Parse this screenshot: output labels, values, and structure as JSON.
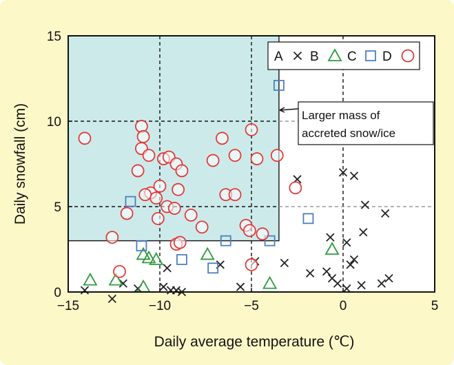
{
  "chart_data": {
    "type": "scatter",
    "xlabel": "Daily average temperature (℃)",
    "ylabel": "Daily snowfall (cm)",
    "xlim": [
      -15,
      5
    ],
    "ylim": [
      0,
      15
    ],
    "xticks": [
      "−15",
      "−10",
      "−5",
      "0",
      "5"
    ],
    "yticks": [
      "0",
      "5",
      "10",
      "15"
    ],
    "x_gridlines": [
      -10,
      -5,
      0
    ],
    "y_gridlines": [
      5,
      10
    ],
    "legend_position": "top-right",
    "highlight_region": {
      "x": [
        -15,
        -3.5
      ],
      "y": [
        3,
        15
      ],
      "color": "#cdeaea",
      "annotation": [
        "Larger mass of",
        "accreted snow/ice"
      ]
    },
    "series": [
      {
        "name": "A",
        "marker": "x",
        "color": "#222222",
        "points": [
          [
            -14.1,
            0.1
          ],
          [
            -12.6,
            -0.4
          ],
          [
            -12.0,
            0.5
          ],
          [
            -11.2,
            0.2
          ],
          [
            -9.6,
            1.4
          ],
          [
            -9.8,
            0.3
          ],
          [
            -9.4,
            0.1
          ],
          [
            -9.1,
            0.1
          ],
          [
            -8.8,
            0.0
          ],
          [
            -6.7,
            1.6
          ],
          [
            -5.6,
            0.3
          ],
          [
            -4.8,
            1.8
          ],
          [
            -3.2,
            1.7
          ],
          [
            -2.5,
            6.6
          ],
          [
            -1.8,
            1.1
          ],
          [
            -0.9,
            1.2
          ],
          [
            -0.6,
            0.8
          ],
          [
            -0.7,
            3.2
          ],
          [
            -0.3,
            0.5
          ],
          [
            0.0,
            7.0
          ],
          [
            0.2,
            2.9
          ],
          [
            0.2,
            0.2
          ],
          [
            0.4,
            1.6
          ],
          [
            0.6,
            6.8
          ],
          [
            0.6,
            1.9
          ],
          [
            1.2,
            5.1
          ],
          [
            1.1,
            3.5
          ],
          [
            1.0,
            0.4
          ],
          [
            2.3,
            4.6
          ],
          [
            2.1,
            0.5
          ],
          [
            2.5,
            0.8
          ]
        ]
      },
      {
        "name": "B",
        "marker": "triangle",
        "color": "#2e9a3c",
        "points": [
          [
            -13.8,
            0.7
          ],
          [
            -12.4,
            0.7
          ],
          [
            -10.9,
            2.2
          ],
          [
            -10.6,
            2.0
          ],
          [
            -10.2,
            1.9
          ],
          [
            -10.9,
            0.3
          ],
          [
            -7.4,
            2.2
          ],
          [
            -4.0,
            0.5
          ],
          [
            -0.6,
            2.5
          ]
        ]
      },
      {
        "name": "C",
        "marker": "square",
        "color": "#4a7fc0",
        "points": [
          [
            -11.6,
            5.3
          ],
          [
            -11.0,
            2.7
          ],
          [
            -8.8,
            1.9
          ],
          [
            -7.1,
            1.4
          ],
          [
            -6.4,
            3.0
          ],
          [
            -4.0,
            3.0
          ],
          [
            -3.5,
            12.1
          ],
          [
            -1.9,
            4.3
          ]
        ]
      },
      {
        "name": "D",
        "marker": "circle",
        "color": "#e23a3a",
        "points": [
          [
            -14.1,
            9.0
          ],
          [
            -12.2,
            1.2
          ],
          [
            -12.6,
            3.2
          ],
          [
            -11.8,
            4.6
          ],
          [
            -11.2,
            7.1
          ],
          [
            -11.0,
            9.7
          ],
          [
            -10.9,
            9.1
          ],
          [
            -11.0,
            8.4
          ],
          [
            -10.6,
            8.0
          ],
          [
            -10.5,
            5.8
          ],
          [
            -10.2,
            5.5
          ],
          [
            -10.8,
            5.7
          ],
          [
            -10.0,
            6.2
          ],
          [
            -10.1,
            4.3
          ],
          [
            -9.6,
            5.0
          ],
          [
            -9.8,
            7.8
          ],
          [
            -9.5,
            7.9
          ],
          [
            -9.1,
            7.5
          ],
          [
            -8.8,
            7.1
          ],
          [
            -9.0,
            6.0
          ],
          [
            -9.2,
            4.9
          ],
          [
            -9.1,
            2.8
          ],
          [
            -8.9,
            2.9
          ],
          [
            -8.3,
            4.5
          ],
          [
            -7.7,
            3.8
          ],
          [
            -7.1,
            7.7
          ],
          [
            -6.6,
            9.0
          ],
          [
            -6.4,
            5.7
          ],
          [
            -5.9,
            5.7
          ],
          [
            -5.9,
            8.0
          ],
          [
            -5.3,
            3.9
          ],
          [
            -5.1,
            3.6
          ],
          [
            -5.0,
            9.5
          ],
          [
            -4.7,
            7.8
          ],
          [
            -4.4,
            3.4
          ],
          [
            -5.0,
            1.6
          ],
          [
            -3.6,
            8.0
          ],
          [
            -2.6,
            6.1
          ]
        ]
      }
    ]
  }
}
